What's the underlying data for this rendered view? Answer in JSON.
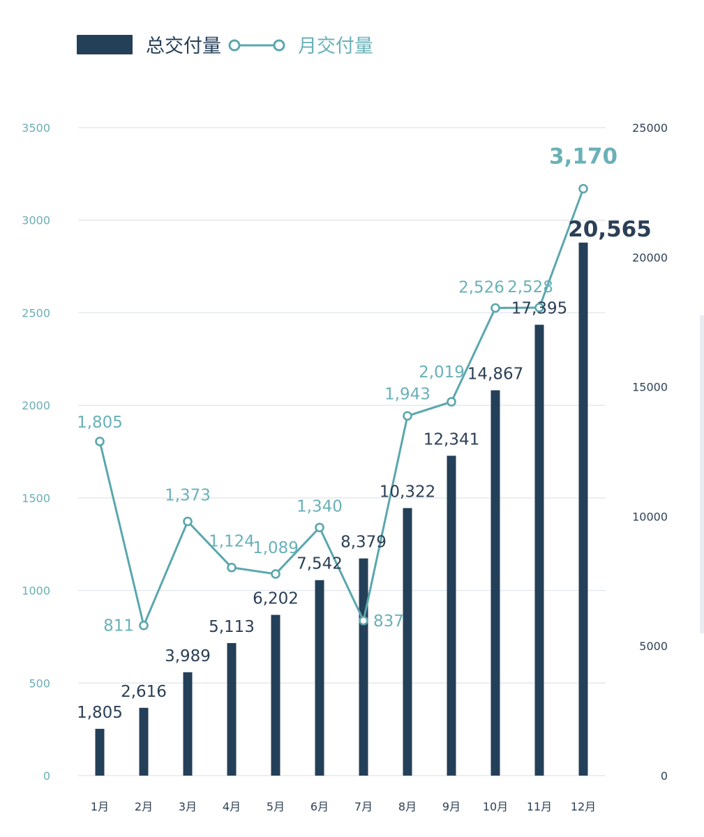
{
  "colors": {
    "bar": "#243f58",
    "line": "#5aa7ad",
    "grid": "#dfe3ea",
    "tick_left": "#6aaeb6",
    "tick_right": "#2f4257",
    "bar_label": "#2b3f55",
    "line_label": "#69b1b8"
  },
  "chart_data": {
    "type": "bar",
    "categories": [
      "1月",
      "2月",
      "3月",
      "4月",
      "5月",
      "6月",
      "7月",
      "8月",
      "9月",
      "10月",
      "11月",
      "12月"
    ],
    "series": [
      {
        "name": "总交付量",
        "type": "bar",
        "axis": "right",
        "values": [
          1805,
          2616,
          3989,
          5113,
          6202,
          7542,
          8379,
          10322,
          12341,
          14867,
          17395,
          20565
        ],
        "labels": [
          "1,805",
          "2,616",
          "3,989",
          "5,113",
          "6,202",
          "7,542",
          "8,379",
          "10,322",
          "12,341",
          "14,867",
          "17,395",
          "20,565"
        ]
      },
      {
        "name": "月交付量",
        "type": "line",
        "axis": "left",
        "values": [
          1805,
          811,
          1373,
          1124,
          1089,
          1340,
          837,
          1943,
          2019,
          2526,
          2528,
          3170
        ],
        "labels": [
          "1,805",
          "811",
          "1,373",
          "1,124",
          "1,089",
          "1,340",
          "837",
          "1,943",
          "2,019",
          "2,526",
          "2,528",
          "3,170"
        ]
      }
    ],
    "left_axis": {
      "range": [
        0,
        3500
      ],
      "ticks": [
        "0",
        "500",
        "1000",
        "1500",
        "2000",
        "2500",
        "3000",
        "3500"
      ]
    },
    "right_axis": {
      "range": [
        0,
        25000
      ],
      "ticks": [
        "0",
        "5000",
        "10000",
        "15000",
        "20000",
        "25000"
      ]
    },
    "legend": {
      "placement": "top-left",
      "items": [
        "总交付量",
        "月交付量"
      ]
    },
    "title": "",
    "xlabel": "",
    "ylabel": ""
  }
}
